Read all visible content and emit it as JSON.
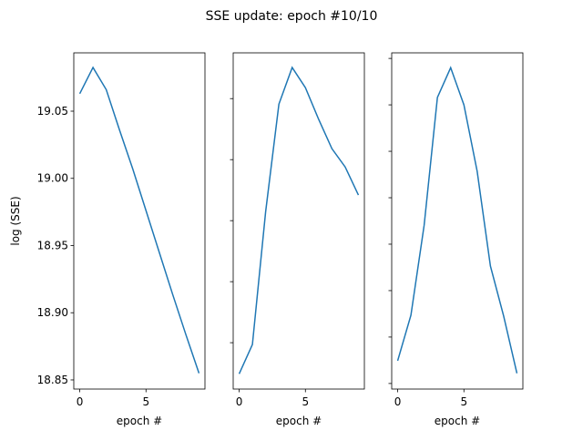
{
  "title": "SSE update: epoch #10/10",
  "chart_data": [
    {
      "type": "line",
      "x": [
        0,
        1,
        2,
        3,
        4,
        5,
        6,
        7,
        8,
        9
      ],
      "xlim": [
        -0.45,
        9.45
      ],
      "xticks": [
        0,
        5
      ],
      "xlabel": "epoch #",
      "ylabel": "log (SSE)",
      "ylim": [
        18.8432,
        19.0934
      ],
      "yticks": [
        {
          "value": 18.85,
          "label": "18.85"
        },
        {
          "value": 18.9,
          "label": "18.90"
        },
        {
          "value": 18.95,
          "label": "18.95"
        },
        {
          "value": 19.0,
          "label": "19.00"
        },
        {
          "value": 19.05,
          "label": "19.05"
        }
      ],
      "ytick_labels": true,
      "series": [
        {
          "color": "#1f77b4",
          "values": [
            19.063,
            19.0825,
            19.066,
            19.036,
            19.007,
            18.976,
            18.945,
            18.914,
            18.884,
            18.855
          ]
        }
      ]
    },
    {
      "type": "line",
      "x": [
        0,
        1,
        2,
        3,
        4,
        5,
        6,
        7,
        8,
        9
      ],
      "xlim": [
        -0.45,
        9.45
      ],
      "xticks": [
        0,
        5
      ],
      "xlabel": "epoch #",
      "ylim": [
        -0.76,
        4.75
      ],
      "yticks": [
        0,
        1,
        2,
        3,
        4
      ],
      "ytick_labels": false,
      "series": [
        {
          "color": "#1f77b4",
          "values": [
            -0.51,
            -0.03,
            2.15,
            3.91,
            4.51,
            4.18,
            3.66,
            3.18,
            2.88,
            2.42
          ]
        }
      ]
    },
    {
      "type": "line",
      "x": [
        0,
        1,
        2,
        3,
        4,
        5,
        6,
        7,
        8,
        9
      ],
      "xlim": [
        -0.45,
        9.45
      ],
      "xticks": [
        0,
        5
      ],
      "xlabel": "epoch #",
      "ylim": [
        -0.12,
        7.12
      ],
      "yticks": [
        0,
        1,
        2,
        3,
        4,
        5,
        6,
        7
      ],
      "ytick_labels": false,
      "series": [
        {
          "color": "#1f77b4",
          "values": [
            0.49,
            1.47,
            3.41,
            6.16,
            6.8,
            6.0,
            4.57,
            2.53,
            1.45,
            0.22
          ]
        }
      ]
    }
  ]
}
